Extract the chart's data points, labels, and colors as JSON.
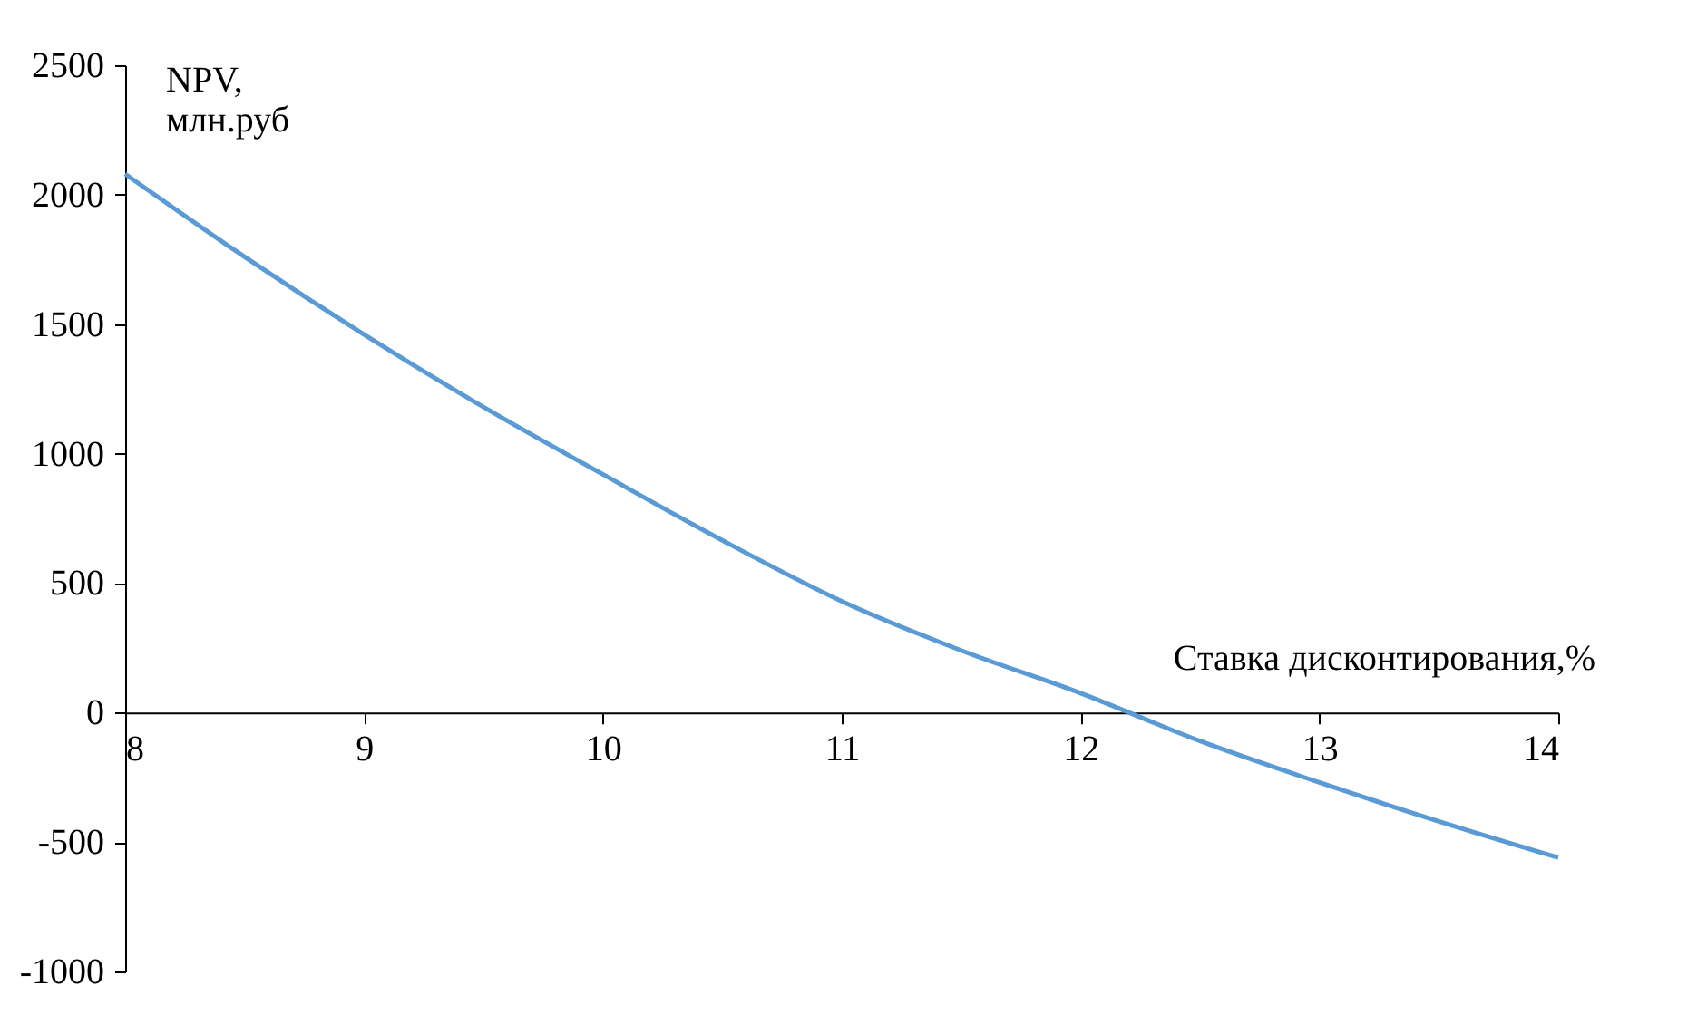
{
  "chart_data": {
    "type": "line",
    "xlabel": "Ставка дисконтирования,%",
    "ylabel": "NPV, млн.руб",
    "x": [
      8,
      8.5,
      9,
      9.5,
      10,
      10.5,
      11,
      11.5,
      12,
      12.5,
      13,
      13.5,
      14
    ],
    "series": [
      {
        "color": "#5b9bd5",
        "values": [
          2080,
          1760,
          1460,
          1180,
          920,
          665,
          430,
          240,
          75,
          -110,
          -270,
          -420,
          -560
        ]
      }
    ],
    "xlim": [
      8,
      14
    ],
    "xticks": [
      8,
      9,
      10,
      11,
      12,
      13,
      14
    ],
    "ylim": [
      -1000,
      2500
    ],
    "yticks": [
      -1000,
      -500,
      0,
      500,
      1000,
      1500,
      2000,
      2500
    ],
    "grid": false,
    "marker": "none",
    "line_style": "solid"
  }
}
